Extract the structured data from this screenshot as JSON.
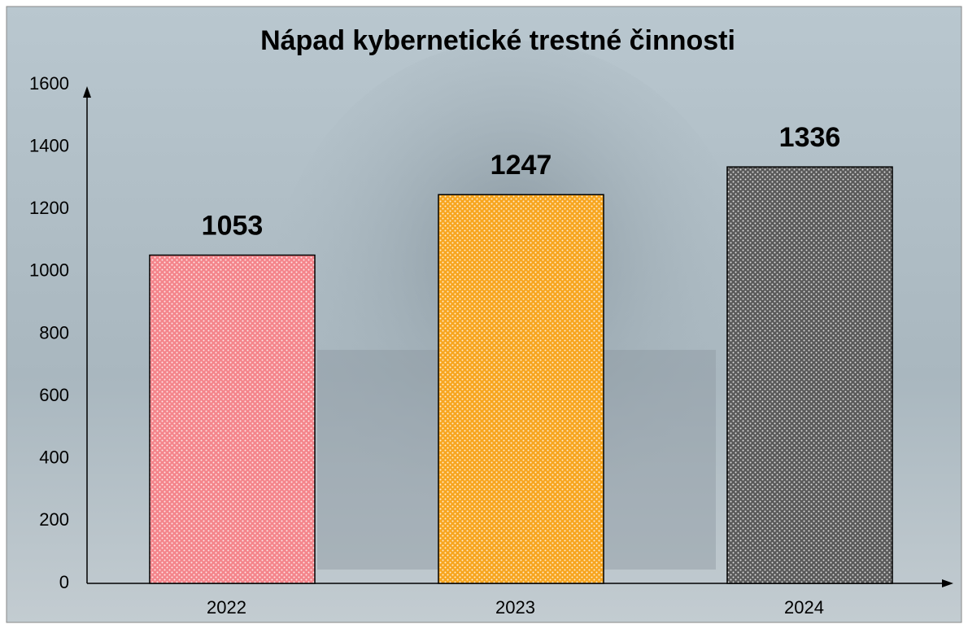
{
  "chart_data": {
    "type": "bar",
    "title": "Nápad kybernetické trestné činnosti",
    "categories": [
      "2022",
      "2023",
      "2024"
    ],
    "values": [
      1053,
      1247,
      1336
    ],
    "colors": [
      "#f4858b",
      "#f7a51f",
      "#5a5a5a"
    ],
    "ylim": [
      0,
      1600
    ],
    "yticks": [
      0,
      200,
      400,
      600,
      800,
      1000,
      1200,
      1400,
      1600
    ],
    "grid": false
  }
}
